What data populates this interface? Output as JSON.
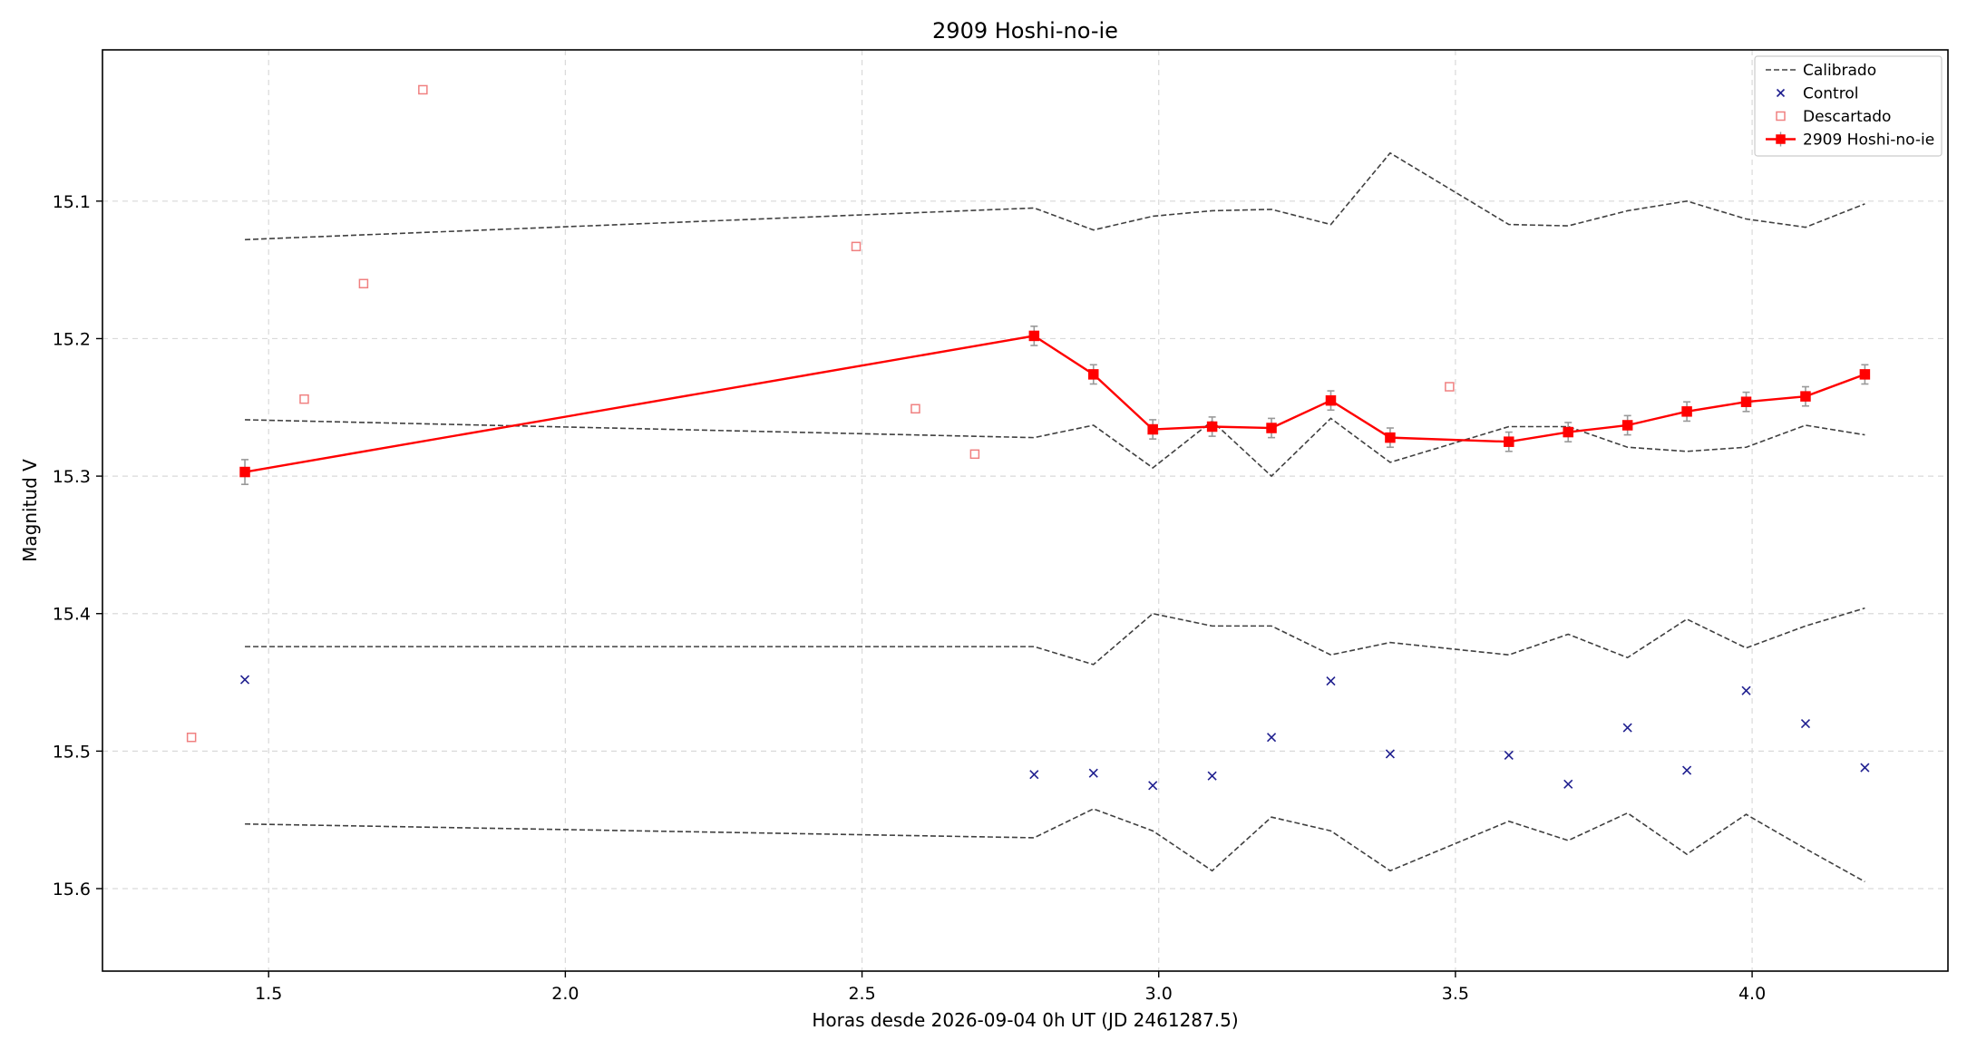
{
  "chart_data": {
    "type": "line",
    "title": "2909 Hoshi-no-ie",
    "xlabel": "Horas desde 2026-09-04 0h UT (JD 2461287.5)",
    "ylabel": "Magnitud V",
    "xlim": [
      1.22,
      4.33
    ],
    "ylim": [
      15.66,
      14.99
    ],
    "y_inverted": true,
    "grid": true,
    "legend_position": "top-right",
    "x_ticks": [
      1.5,
      2.0,
      2.5,
      3.0,
      3.5,
      4.0
    ],
    "x_tick_labels": [
      "1.5",
      "2.0",
      "2.5",
      "3.0",
      "3.5",
      "4.0"
    ],
    "y_ticks": [
      15.1,
      15.2,
      15.3,
      15.4,
      15.5,
      15.6
    ],
    "y_tick_labels": [
      "15.1",
      "15.2",
      "15.3",
      "15.4",
      "15.5",
      "15.6"
    ],
    "legend": [
      {
        "label": "Calibrado",
        "style": "dashed-line",
        "color": "#404040"
      },
      {
        "label": "Control",
        "style": "x-marker",
        "color": "#1f1f8f"
      },
      {
        "label": "Descartado",
        "style": "open-square",
        "color": "#f08080"
      },
      {
        "label": "2909 Hoshi-no-ie",
        "style": "line-square-errorbar",
        "color": "#ff0000"
      }
    ],
    "series": [
      {
        "name": "2909 Hoshi-no-ie",
        "color": "#ff0000",
        "kind": "line-errorbar",
        "x": [
          1.46,
          2.79,
          2.89,
          2.99,
          3.09,
          3.19,
          3.29,
          3.39,
          3.59,
          3.69,
          3.79,
          3.89,
          3.99,
          4.09,
          4.19
        ],
        "y": [
          15.297,
          15.198,
          15.226,
          15.266,
          15.264,
          15.265,
          15.245,
          15.272,
          15.275,
          15.268,
          15.263,
          15.253,
          15.246,
          15.242,
          15.226
        ],
        "err": [
          0.009,
          0.007,
          0.007,
          0.007,
          0.007,
          0.007,
          0.007,
          0.007,
          0.007,
          0.007,
          0.007,
          0.007,
          0.007,
          0.007,
          0.007
        ]
      },
      {
        "name": "Calibrado",
        "color": "#404040",
        "kind": "dashed",
        "x": [
          1.46,
          2.79,
          2.89,
          2.99,
          3.09,
          3.19,
          3.29,
          3.39,
          3.59,
          3.69,
          3.79,
          3.89,
          3.99,
          4.09,
          4.19
        ],
        "y": [
          15.128,
          15.105,
          15.121,
          15.111,
          15.107,
          15.106,
          15.117,
          15.065,
          15.117,
          15.118,
          15.107,
          15.1,
          15.113,
          15.119,
          15.102
        ]
      },
      {
        "name": "Calibrado",
        "color": "#404040",
        "kind": "dashed",
        "x": [
          1.46,
          2.79,
          2.89,
          2.99,
          3.09,
          3.19,
          3.29,
          3.39,
          3.59,
          3.69,
          3.79,
          3.89,
          3.99,
          4.09,
          4.19
        ],
        "y": [
          15.259,
          15.272,
          15.263,
          15.294,
          15.26,
          15.3,
          15.258,
          15.29,
          15.264,
          15.264,
          15.279,
          15.282,
          15.279,
          15.263,
          15.27
        ]
      },
      {
        "name": "Calibrado",
        "color": "#404040",
        "kind": "dashed",
        "x": [
          1.46,
          2.79,
          2.89,
          2.99,
          3.09,
          3.19,
          3.29,
          3.39,
          3.59,
          3.69,
          3.79,
          3.89,
          3.99,
          4.09,
          4.19
        ],
        "y": [
          15.424,
          15.424,
          15.437,
          15.4,
          15.409,
          15.409,
          15.43,
          15.421,
          15.43,
          15.415,
          15.432,
          15.404,
          15.425,
          15.409,
          15.396
        ]
      },
      {
        "name": "Calibrado",
        "color": "#404040",
        "kind": "dashed",
        "x": [
          1.46,
          2.79,
          2.89,
          2.99,
          3.09,
          3.19,
          3.29,
          3.39,
          3.59,
          3.69,
          3.79,
          3.89,
          3.99,
          4.09,
          4.19
        ],
        "y": [
          15.553,
          15.563,
          15.542,
          15.558,
          15.587,
          15.548,
          15.558,
          15.587,
          15.551,
          15.565,
          15.545,
          15.575,
          15.546,
          15.571,
          15.595
        ]
      },
      {
        "name": "Control",
        "color": "#1f1f8f",
        "kind": "x",
        "x": [
          1.46,
          2.79,
          2.89,
          2.99,
          3.09,
          3.19,
          3.29,
          3.39,
          3.59,
          3.69,
          3.79,
          3.89,
          3.99,
          4.09,
          4.19
        ],
        "y": [
          15.448,
          15.517,
          15.516,
          15.525,
          15.518,
          15.49,
          15.449,
          15.502,
          15.503,
          15.524,
          15.483,
          15.514,
          15.456,
          15.48,
          15.512
        ]
      },
      {
        "name": "Descartado",
        "color": "#f08080",
        "kind": "square",
        "x": [
          1.37,
          1.56,
          1.66,
          1.76,
          2.49,
          2.59,
          2.69,
          3.49
        ],
        "y": [
          15.49,
          15.244,
          15.16,
          15.019,
          15.133,
          15.251,
          15.284,
          15.235
        ]
      }
    ]
  }
}
